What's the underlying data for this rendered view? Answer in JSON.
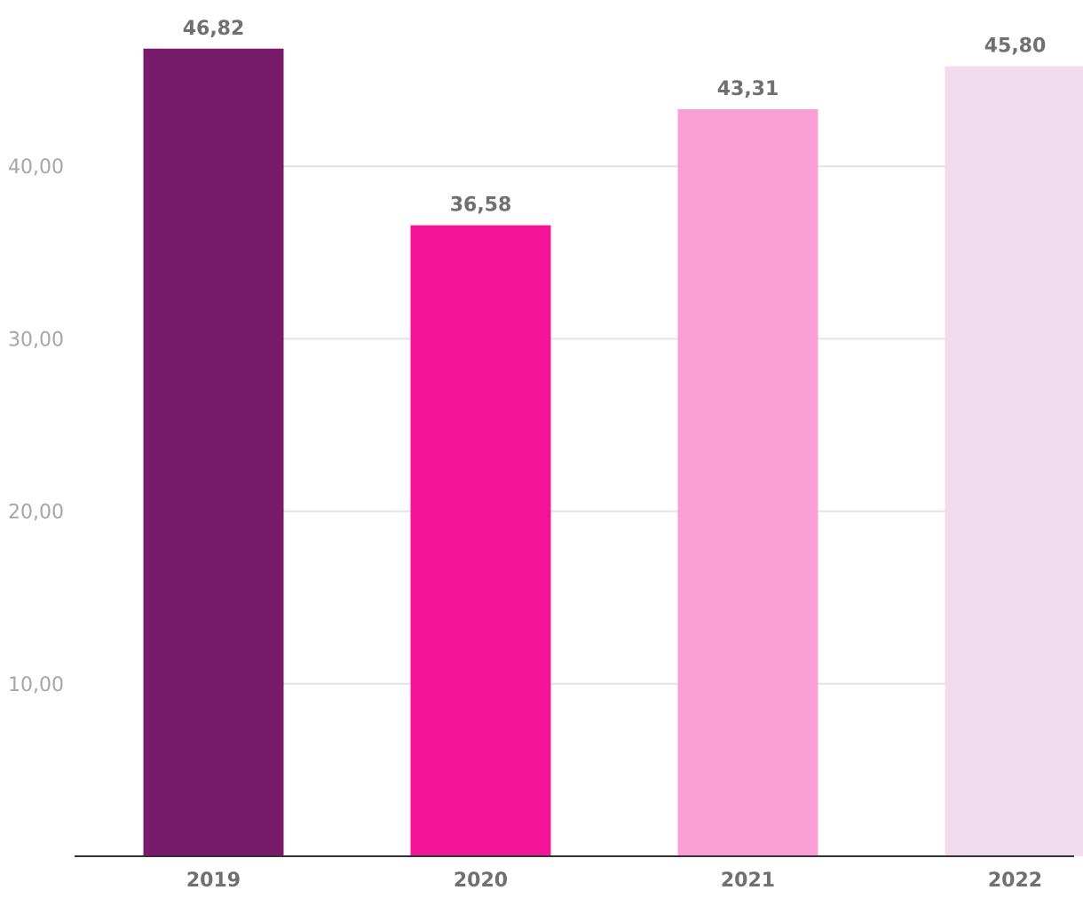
{
  "chart_data": {
    "type": "bar",
    "categories": [
      "2019",
      "2020",
      "2021",
      "2022"
    ],
    "values": [
      46.82,
      36.58,
      43.31,
      45.8
    ],
    "data_labels": [
      "46,82",
      "36,58",
      "43,31",
      "45,80"
    ],
    "colors": [
      "#781b6b",
      "#f21399",
      "#fa9fd5",
      "#f2dbec"
    ],
    "y_ticks": [
      10,
      20,
      30,
      40
    ],
    "y_tick_labels": [
      "10,00",
      "20,00",
      "30,00",
      "40,00"
    ],
    "ylim": [
      0,
      50
    ],
    "grid": true,
    "title": "",
    "xlabel": "",
    "ylabel": ""
  }
}
